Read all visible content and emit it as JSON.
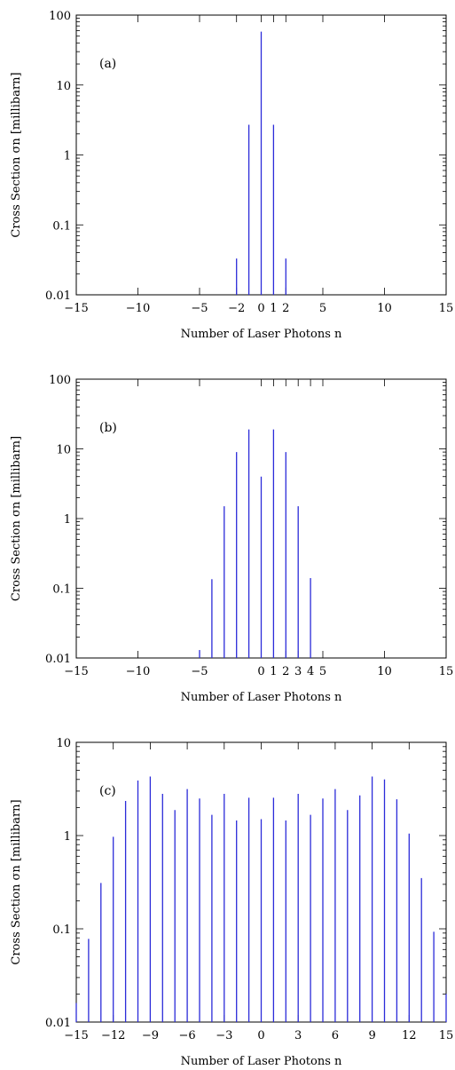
{
  "chart_data": [
    {
      "type": "bar",
      "panel_label": "(a)",
      "xlabel": "Number of Laser Photons  n",
      "ylabel": "Cross Section σn  [millibarn]",
      "xlim": [
        -15,
        15
      ],
      "ylim": [
        0.01,
        100
      ],
      "yscale": "log",
      "xticks": [
        -15,
        -10,
        -5,
        -2,
        0,
        1,
        2,
        5,
        10,
        15
      ],
      "xtick_labels": [
        "−15",
        "−10",
        "−5",
        "−2",
        "0",
        "1",
        "2",
        "5",
        "10",
        "15"
      ],
      "yticks": [
        0.01,
        0.1,
        1,
        10,
        100
      ],
      "ytick_labels": [
        "0.01",
        "0.1",
        "1",
        "10",
        "100"
      ],
      "x": [
        -2,
        -1,
        0,
        1,
        2
      ],
      "values": [
        0.033,
        2.7,
        58,
        2.7,
        0.033
      ]
    },
    {
      "type": "bar",
      "panel_label": "(b)",
      "xlabel": "Number of Laser Photons  n",
      "ylabel": "Cross Section σn  [millibarn]",
      "xlim": [
        -15,
        15
      ],
      "ylim": [
        0.01,
        100
      ],
      "yscale": "log",
      "xticks": [
        -15,
        -10,
        -5,
        0,
        1,
        2,
        3,
        4,
        5,
        10,
        15
      ],
      "xtick_labels": [
        "−15",
        "−10",
        "−5",
        "0",
        "1",
        "2",
        "3",
        "4",
        "5",
        "10",
        "15"
      ],
      "yticks": [
        0.01,
        0.1,
        1,
        10,
        100
      ],
      "ytick_labels": [
        "0.01",
        "0.1",
        "1",
        "10",
        "100"
      ],
      "x": [
        -5,
        -4,
        -3,
        -2,
        -1,
        0,
        1,
        2,
        3,
        4
      ],
      "values": [
        0.013,
        0.135,
        1.5,
        9,
        19,
        4,
        19,
        9,
        1.5,
        0.14
      ]
    },
    {
      "type": "bar",
      "panel_label": "(c)",
      "xlabel": "Number of Laser Photons  n",
      "ylabel": "Cross Section σn  [millibarn]",
      "xlim": [
        -15,
        15
      ],
      "ylim": [
        0.01,
        10
      ],
      "yscale": "log",
      "xticks": [
        -15,
        -12,
        -9,
        -6,
        -3,
        0,
        3,
        6,
        9,
        12,
        15
      ],
      "xtick_labels": [
        "−15",
        "−12",
        "−9",
        "−6",
        "−3",
        "0",
        "3",
        "6",
        "9",
        "12",
        "15"
      ],
      "yticks": [
        0.01,
        0.1,
        1,
        10
      ],
      "ytick_labels": [
        "0.01",
        "0.1",
        "1",
        "10"
      ],
      "x": [
        -15,
        -14,
        -13,
        -12,
        -11,
        -10,
        -9,
        -8,
        -7,
        -6,
        -5,
        -4,
        -3,
        -2,
        -1,
        0,
        1,
        2,
        3,
        4,
        5,
        6,
        7,
        8,
        9,
        10,
        11,
        12,
        13,
        14,
        15
      ],
      "values": [
        0.016,
        0.078,
        0.31,
        0.97,
        2.35,
        3.9,
        4.3,
        2.8,
        1.88,
        3.15,
        2.5,
        1.67,
        2.8,
        1.45,
        2.55,
        1.5,
        2.55,
        1.45,
        2.8,
        1.67,
        2.5,
        3.15,
        1.88,
        2.7,
        4.3,
        4.0,
        2.45,
        1.05,
        0.35,
        0.093,
        0.02
      ]
    }
  ]
}
